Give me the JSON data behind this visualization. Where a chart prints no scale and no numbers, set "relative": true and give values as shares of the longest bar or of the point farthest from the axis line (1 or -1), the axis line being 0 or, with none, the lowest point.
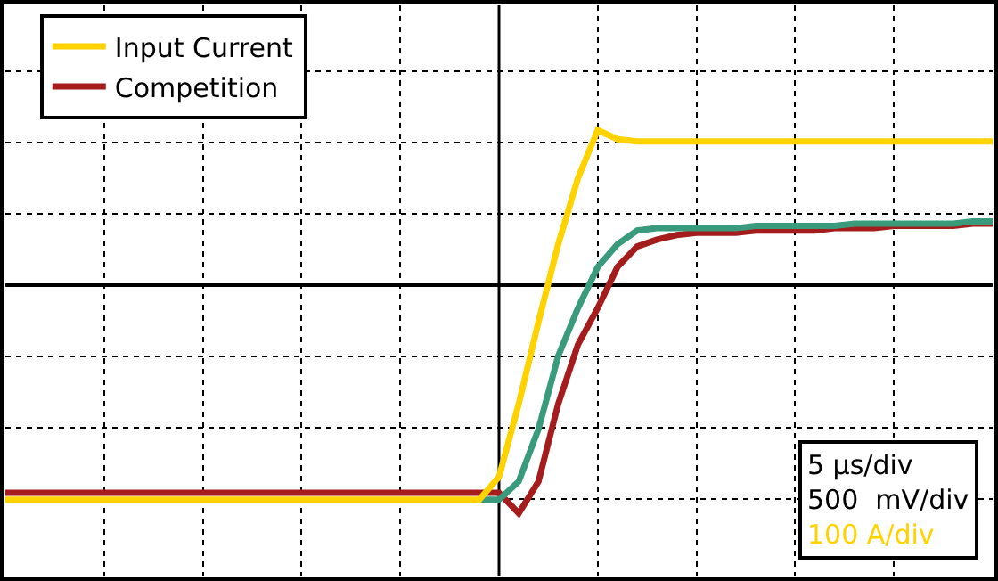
{
  "chart_data": {
    "type": "line",
    "relative": true,
    "grid": true,
    "legend": "top left",
    "line_style": "solid",
    "categories": [
      null,
      null,
      null,
      null,
      null,
      null,
      null,
      null,
      null,
      null,
      null,
      null,
      null,
      null,
      null,
      null,
      null,
      null,
      null,
      null,
      null,
      null,
      null,
      null,
      null,
      null,
      null,
      null,
      null,
      null,
      null,
      null,
      null,
      null,
      null,
      null,
      null,
      null,
      null,
      null,
      null,
      null,
      null,
      null,
      null,
      null,
      null,
      null,
      null,
      null,
      null
    ],
    "series": [
      {
        "name": "Input Current",
        "color": "#ffd200",
        "values": [
          -0.94,
          -0.94,
          -0.94,
          -0.94,
          -0.94,
          -0.94,
          -0.94,
          -0.94,
          -0.94,
          -0.94,
          -0.94,
          -0.94,
          -0.94,
          -0.94,
          -0.94,
          -0.94,
          -0.94,
          -0.94,
          -0.94,
          -0.94,
          -0.94,
          -0.94,
          -0.94,
          -0.94,
          -0.94,
          -0.84,
          -0.52,
          -0.16,
          0.18,
          0.47,
          0.68,
          0.64,
          0.63,
          0.63,
          0.63,
          0.63,
          0.63,
          0.63,
          0.63,
          0.63,
          0.63,
          0.63,
          0.63,
          0.63,
          0.63,
          0.63,
          0.63,
          0.63,
          0.63,
          0.63,
          0.63
        ]
      },
      {
        "color": "#3a9a7c",
        "values": [
          null,
          null,
          null,
          null,
          null,
          null,
          null,
          null,
          null,
          null,
          null,
          null,
          null,
          null,
          null,
          null,
          null,
          null,
          null,
          null,
          null,
          null,
          null,
          null,
          -0.94,
          -0.94,
          -0.86,
          -0.63,
          -0.31,
          -0.1,
          0.08,
          0.18,
          0.24,
          0.25,
          0.25,
          0.25,
          0.25,
          0.25,
          0.26,
          0.26,
          0.26,
          0.26,
          0.26,
          0.27,
          0.27,
          0.27,
          0.27,
          0.27,
          0.27,
          0.28,
          0.28
        ]
      },
      {
        "name": "Competition",
        "color": "#a51c1c",
        "values": [
          -0.91,
          -0.91,
          -0.91,
          -0.91,
          -0.91,
          -0.91,
          -0.91,
          -0.91,
          -0.91,
          -0.91,
          -0.91,
          -0.91,
          -0.91,
          -0.91,
          -0.91,
          -0.91,
          -0.91,
          -0.91,
          -0.91,
          -0.91,
          -0.91,
          -0.91,
          -0.91,
          -0.91,
          -0.91,
          -0.91,
          -1,
          -0.86,
          -0.52,
          -0.26,
          -0.1,
          0.08,
          0.17,
          0.2,
          0.22,
          0.23,
          0.23,
          0.23,
          0.24,
          0.24,
          0.24,
          0.24,
          0.25,
          0.25,
          0.25,
          0.26,
          0.26,
          0.26,
          0.26,
          0.27,
          0.27
        ]
      }
    ],
    "annotations": [
      "5 µs/div",
      "500  mV/div",
      "100 A/div"
    ]
  }
}
